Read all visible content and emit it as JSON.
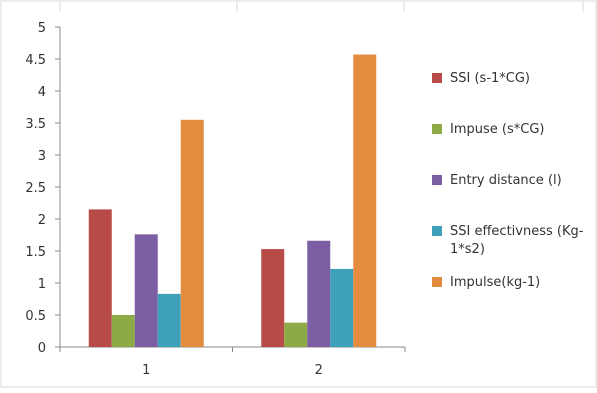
{
  "chart_data": {
    "type": "bar",
    "categories": [
      "1",
      "2"
    ],
    "series": [
      {
        "name": "SSI (s-1*CG)",
        "color": "#b84a47",
        "values": [
          2.15,
          1.53
        ]
      },
      {
        "name": "Impuse (s*CG)",
        "color": "#8daa46",
        "values": [
          0.5,
          0.38
        ]
      },
      {
        "name": "Entry distance (l)",
        "color": "#7b5ea3",
        "values": [
          1.76,
          1.66
        ]
      },
      {
        "name": "SSI effectivness (Kg-1*s2)",
        "color": "#3fa0b9",
        "values": [
          0.83,
          1.22
        ]
      },
      {
        "name": "Impulse(kg-1)",
        "color": "#e38b3e",
        "values": [
          3.55,
          4.57
        ]
      }
    ],
    "y_ticks": [
      "0",
      "0.5",
      "1",
      "1.5",
      "2",
      "2.5",
      "3",
      "3.5",
      "4",
      "4.5",
      "5"
    ],
    "ylim": [
      0,
      5
    ],
    "grid": false,
    "legend_position": "right",
    "title": "",
    "xlabel": "",
    "ylabel": ""
  }
}
